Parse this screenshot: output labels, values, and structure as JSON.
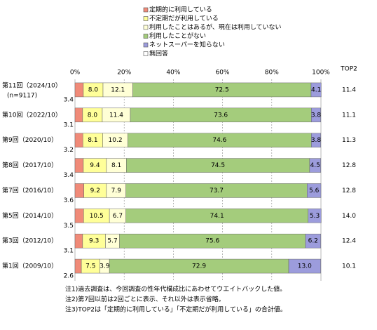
{
  "chart_data": {
    "type": "bar",
    "orientation": "horizontal",
    "stacked": true,
    "categories": [
      "第11回（2024/10）",
      "第10回（2022/10）",
      "第9回（2020/10）",
      "第8回（2017/10）",
      "第7回（2016/10）",
      "第5回（2014/10）",
      "第3回（2012/10）",
      "第1回（2009/10）"
    ],
    "sample_label": "(n=9117)",
    "series": [
      {
        "name": "定期的に利用している",
        "color": "#f08a78",
        "values": [
          3.4,
          3.1,
          3.2,
          3.4,
          3.6,
          3.5,
          3.1,
          2.6
        ],
        "value_labels": [
          "3.4",
          "3.1",
          "3.2",
          "3.4",
          "3.6",
          "3.5",
          "3.1",
          "2.6"
        ]
      },
      {
        "name": "不定期だが利用している",
        "color": "#ffff99",
        "values": [
          8,
          8,
          8.1,
          9.4,
          9.2,
          10.5,
          9.3,
          7.5
        ],
        "value_labels": [
          "8.0",
          "8.0",
          "8.1",
          "9.4",
          "9.2",
          "10.5",
          "9.3",
          "7.5"
        ]
      },
      {
        "name": "利用したことはあるが、現在は利用していない",
        "color": "#ffffd6",
        "values": [
          12.1,
          11.4,
          10.2,
          8.1,
          7.9,
          6.7,
          5.7,
          3.9
        ],
        "value_labels": [
          "12.1",
          "11.4",
          "10.2",
          "8.1",
          "7.9",
          "6.7",
          "5.7",
          "3.9"
        ]
      },
      {
        "name": "利用したことがない",
        "color": "#a4cc7c",
        "values": [
          72.5,
          73.6,
          74.6,
          74.5,
          73.7,
          74.1,
          75.6,
          72.9
        ],
        "value_labels": [
          "72.5",
          "73.6",
          "74.6",
          "74.5",
          "73.7",
          "74.1",
          "75.6",
          "72.9"
        ]
      },
      {
        "name": "ネットスーパーを知らない",
        "color": "#9c9cdc",
        "values": [
          4.1,
          3.8,
          3.8,
          4.5,
          5.6,
          5.3,
          6.2,
          13
        ],
        "value_labels": [
          "4.1",
          "3.8",
          "3.8",
          "4.5",
          "5.6",
          "5.3",
          "6.2",
          "13.0"
        ]
      },
      {
        "name": "無回答",
        "color": "#ffffff",
        "values": [
          null,
          null,
          null,
          null,
          null,
          null,
          null,
          null
        ]
      }
    ],
    "top2": {
      "title": "TOP2",
      "values": [
        11.4,
        11.1,
        11.3,
        12.8,
        12.8,
        14,
        12.4,
        10.1
      ],
      "value_labels": [
        "11.4",
        "11.1",
        "11.3",
        "12.8",
        "12.8",
        "14.0",
        "12.4",
        "10.1"
      ]
    },
    "xlim": [
      0,
      100
    ],
    "xticks": [
      {
        "value": 0,
        "label": "0%"
      },
      {
        "value": 20,
        "label": "20%"
      },
      {
        "value": 40,
        "label": "40%"
      },
      {
        "value": 60,
        "label": "60%"
      },
      {
        "value": 80,
        "label": "80%"
      },
      {
        "value": 100,
        "label": "100%"
      }
    ],
    "grid": true,
    "notes": [
      "注1)過去調査は、今回調査の性年代構成比にあわせてウエイトバックした値。",
      "注2)第7回以前は2回ごとに表示、それ以外は表示省略。",
      "注3)TOP2は「定期的に利用している」「不定期だが利用している」の合計値。"
    ]
  }
}
